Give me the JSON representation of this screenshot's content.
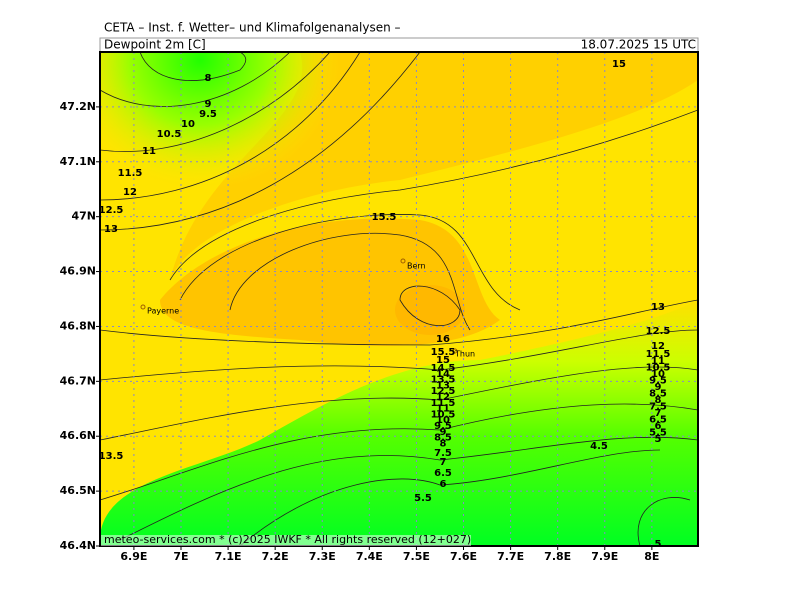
{
  "header": {
    "title": "CETA – Inst. f. Wetter– und Klimafolgenanalysen –",
    "variable": "Dewpoint 2m [C]",
    "valid_time": "18.07.2025 15 UTC"
  },
  "map": {
    "xlim": [
      6.828,
      8.098
    ],
    "ylim": [
      46.4,
      47.3
    ],
    "grid": true,
    "xticks": [
      {
        "value": 6.9,
        "label": "6.9E"
      },
      {
        "value": 7.0,
        "label": "7E"
      },
      {
        "value": 7.1,
        "label": "7.1E"
      },
      {
        "value": 7.2,
        "label": "7.2E"
      },
      {
        "value": 7.3,
        "label": "7.3E"
      },
      {
        "value": 7.4,
        "label": "7.4E"
      },
      {
        "value": 7.5,
        "label": "7.5E"
      },
      {
        "value": 7.6,
        "label": "7.6E"
      },
      {
        "value": 7.7,
        "label": "7.7E"
      },
      {
        "value": 7.8,
        "label": "7.8E"
      },
      {
        "value": 7.9,
        "label": "7.9E"
      },
      {
        "value": 8.0,
        "label": "8E"
      }
    ],
    "yticks": [
      {
        "value": 46.4,
        "label": "46.4N"
      },
      {
        "value": 46.5,
        "label": "46.5N"
      },
      {
        "value": 46.6,
        "label": "46.6N"
      },
      {
        "value": 46.7,
        "label": "46.7N"
      },
      {
        "value": 46.8,
        "label": "46.8N"
      },
      {
        "value": 46.9,
        "label": "46.9N"
      },
      {
        "value": 47.0,
        "label": "47N"
      },
      {
        "value": 47.1,
        "label": "47.1N"
      },
      {
        "value": 47.2,
        "label": "47.2N"
      }
    ]
  },
  "places": [
    "Bern",
    "Payerne",
    "Thun"
  ],
  "contour_labels": [
    "15",
    "8",
    "9",
    "9.5",
    "10",
    "10.5",
    "11",
    "11.5",
    "12",
    "12.5",
    "13",
    "15.5",
    "16",
    "15.5",
    "15",
    "14.5",
    "14",
    "13.5",
    "13",
    "12.5",
    "12",
    "11.5",
    "11",
    "10.5",
    "10",
    "9.5",
    "9",
    "8.5",
    "8",
    "7.5",
    "7",
    "6.5",
    "6",
    "5.5",
    "13.5",
    "4.5",
    "13",
    "12.5",
    "12",
    "11.5",
    "11",
    "10.5",
    "10",
    "9.5",
    "9",
    "8.5",
    "8",
    "7.5",
    "7",
    "6.5",
    "6",
    "5.5",
    "5",
    "5"
  ],
  "footer": "meteo-services.com * (c)2025 IWKF * All rights reserved (12+027)"
}
